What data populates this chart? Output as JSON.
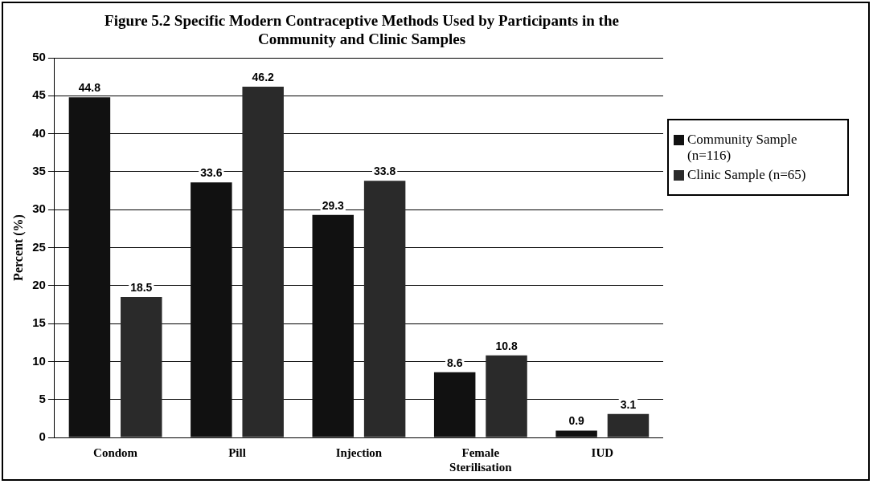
{
  "chart_data": {
    "type": "bar",
    "title": "Figure 5.2 Specific Modern Contraceptive Methods Used by Participants in the Community and Clinic Samples",
    "ylabel": "Percent (%)",
    "categories": [
      "Condom",
      "Pill",
      "Injection",
      "Female Sterilisation",
      "IUD"
    ],
    "series": [
      {
        "name": "Community Sample (n=116)",
        "color": "#111111",
        "values": [
          44.8,
          33.6,
          29.3,
          8.6,
          0.9
        ]
      },
      {
        "name": "Clinic Sample (n=65)",
        "color": "#2a2a2a",
        "values": [
          18.5,
          46.2,
          33.8,
          10.8,
          3.1
        ]
      }
    ],
    "ylim": [
      0,
      50
    ],
    "yticks": [
      0,
      5,
      10,
      15,
      20,
      25,
      30,
      35,
      40,
      45,
      50
    ],
    "grid": "y",
    "legend": "right",
    "data_labels": true
  }
}
